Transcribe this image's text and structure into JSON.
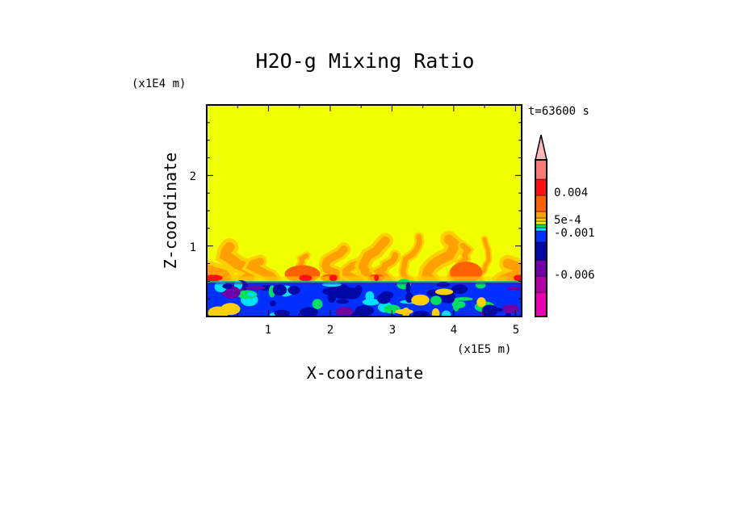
{
  "chart_data": {
    "type": "heatmap",
    "title": "H2O-g Mixing Ratio",
    "xlabel": "X-coordinate",
    "ylabel": "Z-coordinate",
    "x_unit": "(x1E5 m)",
    "y_unit": "(x1E4 m)",
    "time_label": "t=63600 s",
    "xlim": [
      0,
      5.1
    ],
    "ylim": [
      0,
      3.0
    ],
    "x_ticks": [
      "1",
      "2",
      "3",
      "4",
      "5"
    ],
    "y_ticks": [
      "1",
      "2"
    ],
    "colorbar": {
      "colors_bottom_to_top": [
        "#e800b0",
        "#b000a8",
        "#7000a8",
        "#0008a8",
        "#0030ff",
        "#00e0ff",
        "#00e060",
        "#f0f000",
        "#ffd000",
        "#ffa000",
        "#ff6000",
        "#ff1010",
        "#ff7878"
      ],
      "extend_color": "#ffb8b8",
      "labels": [
        "-0.006",
        "-0.001",
        "5e-4",
        "0.004"
      ]
    },
    "field_description_colors": {
      "background": "#f0ff00",
      "plume_light": "#ffd000",
      "plume_mid": "#ffa000",
      "plume_dark": "#ff6000",
      "plume_core": "#ff1010",
      "boundary_layer": "#0030ff",
      "boundary_dark": "#0008a8",
      "boundary_cyan": "#00e0ff",
      "boundary_green": "#00e060",
      "boundary_purple": "#7000a8"
    },
    "boundary_layer_top_z": 0.5
  }
}
